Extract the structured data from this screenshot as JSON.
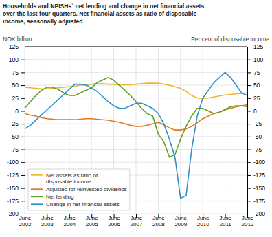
{
  "chart_data": {
    "type": "line",
    "title": "Households and NPISHs` net lending and change in net financial assets\nover the last four quarters. Net financial assets as ratio of disposable\nincome, seasonally adjusted",
    "ylabel": "NOK billion",
    "y2label": "Per cent of disposable income",
    "categories": [
      "June\n2002",
      null,
      null,
      null,
      "June\n2003",
      null,
      null,
      null,
      "June\n2004",
      null,
      null,
      null,
      "June\n2005",
      null,
      null,
      null,
      "June\n2006",
      null,
      null,
      null,
      "June\n2007",
      null,
      null,
      null,
      "June\n2008",
      null,
      null,
      null,
      "June\n2009",
      null,
      null,
      null,
      "June\n2010",
      null,
      null,
      null,
      "June\n2011",
      null,
      null,
      null,
      "June\n2012"
    ],
    "series": [
      {
        "name": "Net assets as ratio of\ndisposable income",
        "color": "#e8b830",
        "values": [
          46,
          45,
          44,
          43,
          43,
          44,
          45,
          46,
          47,
          48,
          50,
          51,
          52,
          53,
          53,
          52,
          52,
          51,
          51,
          51,
          52,
          53,
          54,
          54,
          54,
          52,
          50,
          47,
          44,
          38,
          30,
          25,
          24,
          25,
          27,
          29,
          31,
          32,
          33,
          34,
          35
        ]
      },
      {
        "name": "Adjusted for reinvested dividends",
        "color": "#e07820",
        "values": [
          -5,
          -8,
          -10,
          -13,
          -15,
          -16,
          -17,
          -17,
          -17,
          -17,
          -16,
          -15,
          -15,
          -16,
          -17,
          -18,
          -20,
          -22,
          -25,
          -28,
          -30,
          -30,
          -28,
          -25,
          -22,
          -27,
          -33,
          -37,
          -37,
          -35,
          -30,
          -23,
          -15,
          -10,
          -5,
          -2,
          2,
          5,
          8,
          10,
          12
        ]
      },
      {
        "name": "Net lending",
        "color": "#60a020",
        "values": [
          5,
          18,
          30,
          40,
          46,
          46,
          42,
          35,
          30,
          30,
          35,
          40,
          45,
          55,
          60,
          65,
          60,
          50,
          40,
          30,
          18,
          5,
          -5,
          -10,
          -45,
          -60,
          -90,
          -85,
          -55,
          -30,
          -10,
          5,
          5,
          0,
          -5,
          -3,
          3,
          8,
          10,
          10,
          8
        ]
      },
      {
        "name": "Change in net financial assets",
        "color": "#3090c8",
        "values": [
          -35,
          -28,
          -18,
          -8,
          2,
          12,
          22,
          32,
          42,
          52,
          52,
          50,
          45,
          38,
          28,
          18,
          10,
          5,
          5,
          10,
          15,
          15,
          10,
          5,
          -5,
          -25,
          -55,
          -90,
          -170,
          -165,
          -75,
          -10,
          25,
          40,
          55,
          65,
          75,
          65,
          50,
          35,
          30
        ]
      }
    ],
    "ylim": [
      -200,
      125
    ],
    "yticks": [
      -200,
      -175,
      -150,
      -125,
      -100,
      -75,
      -50,
      -25,
      0,
      25,
      50,
      75,
      100,
      125
    ],
    "y2lim": [
      -200,
      125
    ],
    "y2ticks": [
      -200,
      -175,
      -150,
      -125,
      -100,
      -75,
      -50,
      -25,
      0,
      25,
      50,
      75,
      100,
      125
    ],
    "grid": true,
    "legend": "lower left"
  }
}
